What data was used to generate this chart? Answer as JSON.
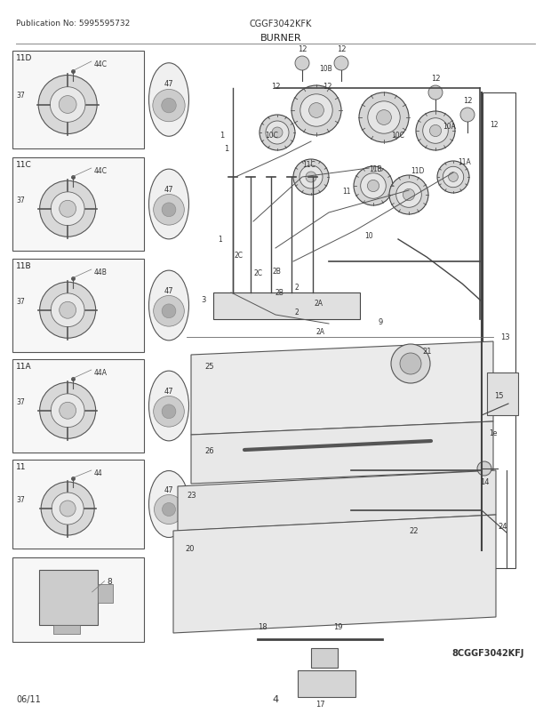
{
  "title_left": "Publication No: 5995595732",
  "title_center": "CGGF3042KFK",
  "section_title": "BURNER",
  "footer_left": "06/11",
  "footer_center": "4",
  "footer_right": "8CGGF3042KFJ",
  "bg_color": "#ffffff",
  "line_color": "#444444",
  "panel_edge": "#555555",
  "panel_fill": "#f5f5f5",
  "diagram_line": "#333333"
}
